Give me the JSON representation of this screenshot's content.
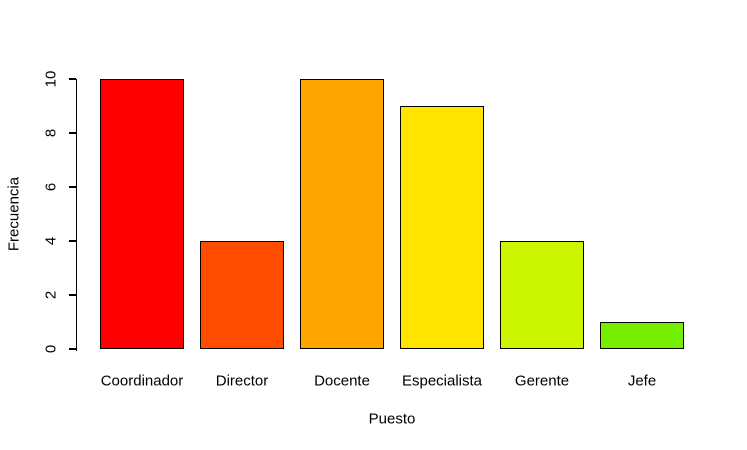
{
  "chart_data": {
    "type": "bar",
    "title": "",
    "xlabel": "Puesto",
    "ylabel": "Frecuencia",
    "categories": [
      "Coordinador",
      "Director",
      "Docente",
      "Especialista",
      "Gerente",
      "Jefe"
    ],
    "values": [
      10,
      4,
      10,
      9,
      4,
      1
    ],
    "bar_colors": [
      "#FF0000",
      "#FF4D00",
      "#FFA500",
      "#FFE400",
      "#CCF500",
      "#76EE00"
    ],
    "bar_border_color": "#000000",
    "background_color": "#FFFFFF",
    "ylim": [
      0,
      10
    ],
    "yticks": [
      0,
      2,
      4,
      6,
      8,
      10
    ],
    "grid": false,
    "legend": "none"
  }
}
